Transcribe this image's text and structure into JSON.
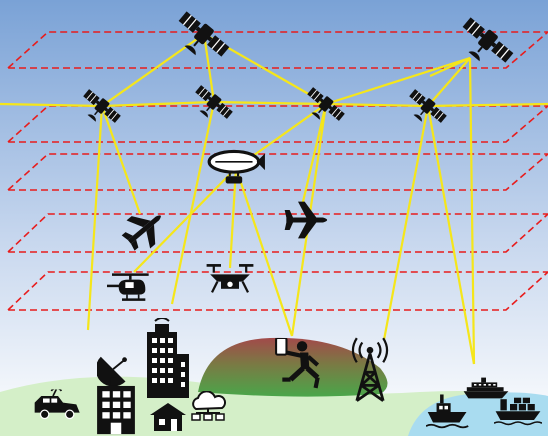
{
  "diagram": {
    "colors": {
      "sky_top": "#7aa2d6",
      "sky_bottom": "#ffffff",
      "layer_dash": "#e81c1c",
      "link": "#f5e61a",
      "hill_top": "#a24a4a",
      "hill_bottom": "#4aa64a",
      "ground": "#d4efc8",
      "sea": "#a9dcf0",
      "icon": "#111111",
      "icon_detail": "#ffffff"
    },
    "nodes": [
      {
        "id": "geo-satellite-left",
        "icon": "satellite-icon",
        "kind": "satellite"
      },
      {
        "id": "geo-satellite-right",
        "icon": "satellite-icon",
        "kind": "satellite"
      },
      {
        "id": "leo-satellite-1",
        "icon": "satellite-icon",
        "kind": "satellite"
      },
      {
        "id": "leo-satellite-2",
        "icon": "satellite-icon",
        "kind": "satellite"
      },
      {
        "id": "leo-satellite-3",
        "icon": "satellite-icon",
        "kind": "satellite"
      },
      {
        "id": "leo-satellite-4",
        "icon": "satellite-icon",
        "kind": "satellite"
      },
      {
        "id": "airship",
        "icon": "airship-icon",
        "kind": "airship"
      },
      {
        "id": "airplane-left",
        "icon": "airplane-icon",
        "kind": "airplane"
      },
      {
        "id": "airplane-right",
        "icon": "airplane-icon",
        "kind": "airplane"
      },
      {
        "id": "helicopter",
        "icon": "helicopter-icon",
        "kind": "helicopter"
      },
      {
        "id": "drone",
        "icon": "drone-icon",
        "kind": "drone"
      },
      {
        "id": "vehicle",
        "icon": "antenna-vehicle-icon",
        "kind": "vehicle"
      },
      {
        "id": "ground-station",
        "icon": "satellite-dish-icon",
        "kind": "dish"
      },
      {
        "id": "office-tower",
        "icon": "office-tower-icon",
        "kind": "tower"
      },
      {
        "id": "building",
        "icon": "building-icon",
        "kind": "building"
      },
      {
        "id": "house",
        "icon": "house-icon",
        "kind": "house"
      },
      {
        "id": "cloud-network",
        "icon": "cloud-network-icon",
        "kind": "cloud"
      },
      {
        "id": "runner-with-phone",
        "icon": "runner-phone-icon",
        "kind": "runner"
      },
      {
        "id": "cell-tower",
        "icon": "cell-tower-icon",
        "kind": "celltower"
      },
      {
        "id": "cruise-ship",
        "icon": "cruise-ship-icon",
        "kind": "cruise"
      },
      {
        "id": "boat",
        "icon": "boat-icon",
        "kind": "boat"
      },
      {
        "id": "cargo-ship",
        "icon": "cargo-ship-icon",
        "kind": "cargo"
      }
    ],
    "links": [
      [
        "geo-satellite-left",
        "leo-satellite-1"
      ],
      [
        "geo-satellite-left",
        "leo-satellite-2"
      ],
      [
        "geo-satellite-left",
        "leo-satellite-3"
      ],
      [
        "geo-satellite-right",
        "leo-satellite-3"
      ],
      [
        "geo-satellite-right",
        "leo-satellite-4"
      ],
      [
        "leo-satellite-1",
        "leo-satellite-2"
      ],
      [
        "leo-satellite-2",
        "leo-satellite-3"
      ],
      [
        "leo-satellite-3",
        "leo-satellite-4"
      ],
      [
        "leo-satellite-1",
        "airplane-left"
      ],
      [
        "leo-satellite-1",
        "vehicle"
      ],
      [
        "leo-satellite-2",
        "office-tower"
      ],
      [
        "leo-satellite-3",
        "airship"
      ],
      [
        "leo-satellite-3",
        "airplane-right"
      ],
      [
        "leo-satellite-3",
        "runner-with-phone"
      ],
      [
        "leo-satellite-4",
        "cell-tower"
      ],
      [
        "leo-satellite-4",
        "cruise-ship"
      ],
      [
        "geo-satellite-right",
        "boat"
      ],
      [
        "airship",
        "drone"
      ],
      [
        "airship",
        "helicopter"
      ],
      [
        "airship",
        "runner-with-phone"
      ]
    ]
  }
}
